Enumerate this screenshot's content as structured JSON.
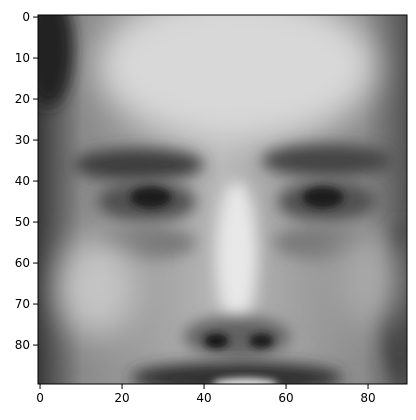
{
  "chart_data": {
    "type": "image",
    "xlim": [
      -0.5,
      89.5
    ],
    "ylim": [
      89.5,
      -0.5
    ],
    "xticks": [
      0,
      20,
      40,
      60,
      80
    ],
    "yticks": [
      0,
      10,
      20,
      30,
      40,
      50,
      60,
      70,
      80
    ]
  }
}
